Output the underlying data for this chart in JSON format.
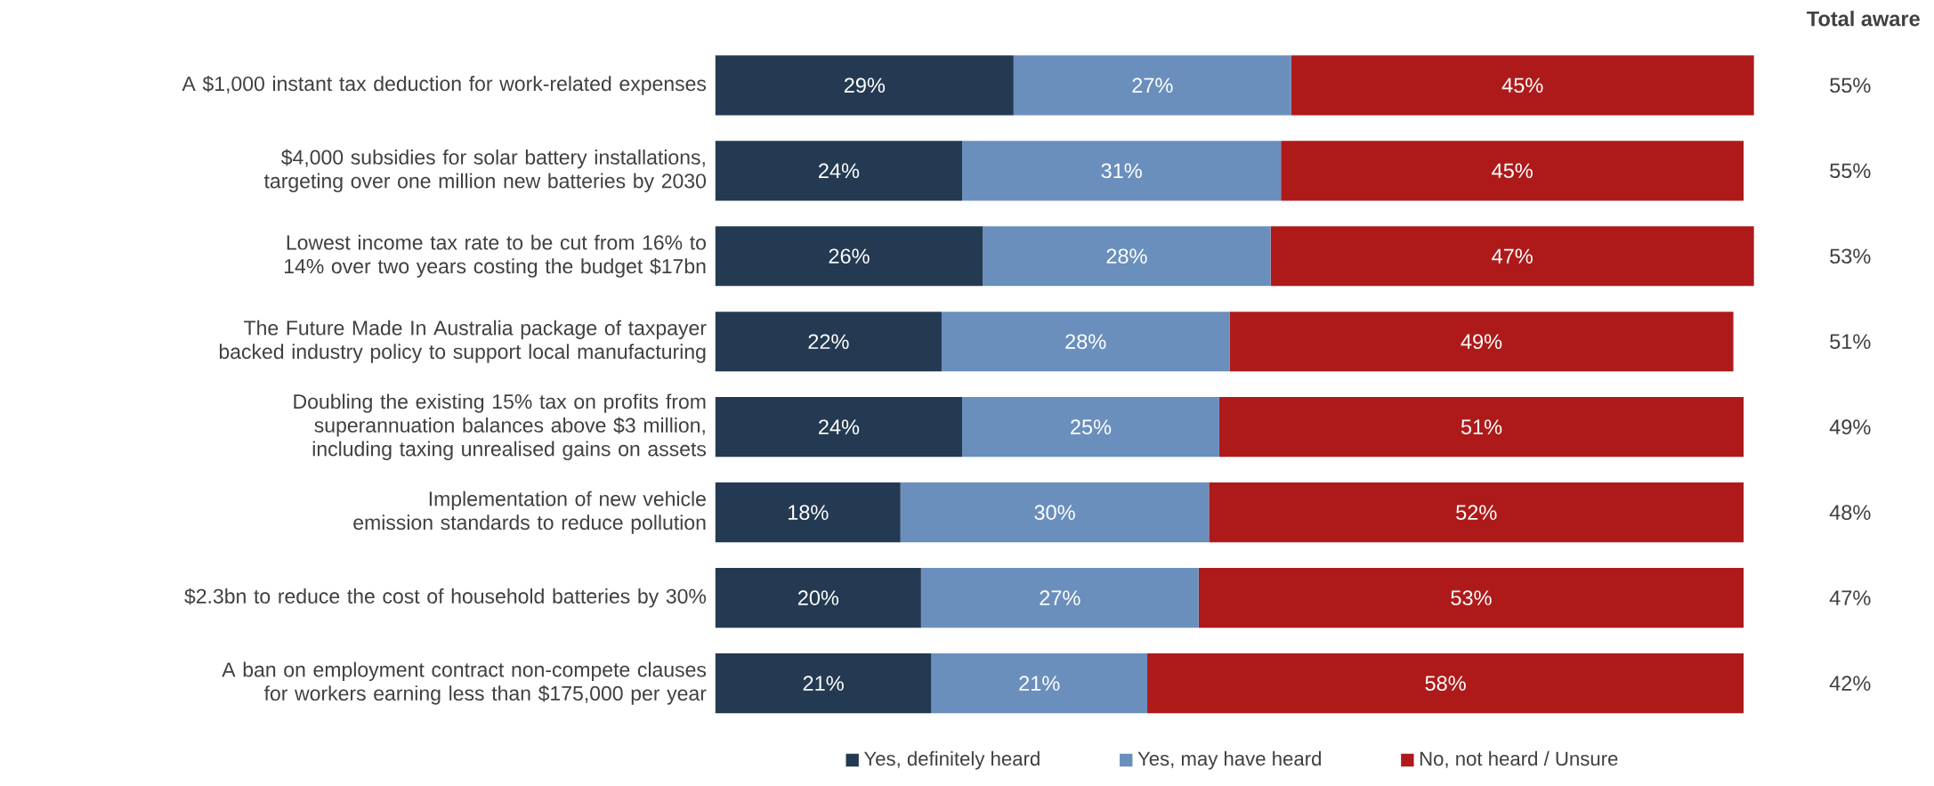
{
  "chart_data": {
    "type": "bar",
    "orientation": "horizontal",
    "stacked": true,
    "legend": "bottom",
    "tick_labels": "y",
    "categories": [
      "A $1,000 instant tax deduction for work-related expenses",
      "$4,000 subsidies for solar battery installations, targeting over one million new batteries by 2030",
      "Lowest income tax rate to be cut from 16% to 14% over two years costing the budget $17bn",
      "The Future Made In Australia package of taxpayer backed industry policy to support local manufacturing",
      "Doubling the existing 15% tax on profits from superannuation balances above $3 million, including taxing unrealised gains on assets",
      "Implementation of new vehicle emission standards to reduce pollution",
      "$2.3bn to reduce the cost of household batteries by 30%",
      "A ban on employment contract non-compete clauses for workers earning less than $175,000 per year"
    ],
    "series": [
      {
        "name": "Yes, definitely heard",
        "color": "#243a52",
        "values": [
          29,
          24,
          26,
          22,
          24,
          18,
          20,
          21
        ],
        "value_labels": [
          "29%",
          "24%",
          "26%",
          "22%",
          "24%",
          "18%",
          "20%",
          "21%"
        ]
      },
      {
        "name": "Yes, may have heard",
        "color": "#6a8fbd",
        "values": [
          27,
          31,
          28,
          28,
          25,
          30,
          27,
          21
        ],
        "value_labels": [
          "27%",
          "31%",
          "28%",
          "28%",
          "25%",
          "30%",
          "27%",
          "21%"
        ]
      },
      {
        "name": "No, not heard / Unsure",
        "color": "#ae1a1a",
        "values": [
          45,
          45,
          47,
          49,
          51,
          52,
          53,
          58
        ],
        "value_labels": [
          "45%",
          "45%",
          "47%",
          "49%",
          "51%",
          "52%",
          "53%",
          "58%"
        ]
      }
    ],
    "annotations": [
      "Total aware",
      "55%",
      "55%",
      "53%",
      "51%",
      "49%",
      "48%",
      "47%",
      "42%"
    ]
  }
}
